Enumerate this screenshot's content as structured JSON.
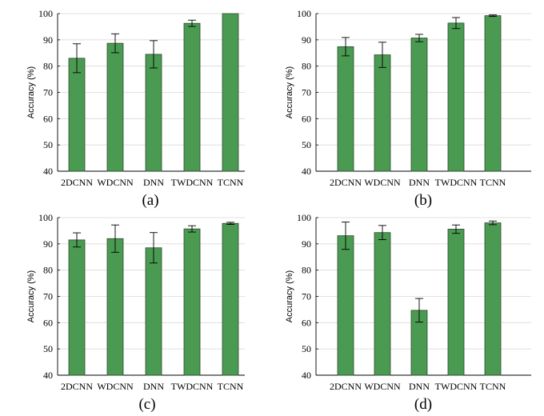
{
  "colors": {
    "bar": "#4a9a52",
    "bar_edge": "#2c4a2e",
    "axis": "#000000",
    "grid": "#d9d9d9",
    "error": "#000000"
  },
  "chart_data": [
    {
      "type": "bar",
      "caption": "(a)",
      "ylabel": "Accuracy (%)",
      "ylim": [
        40,
        100
      ],
      "yticks": [
        "40",
        "50",
        "60",
        "70",
        "80",
        "90",
        "100"
      ],
      "grid": true,
      "categories": [
        "2DCNN",
        "WDCNN",
        "DNN",
        "TWDCNN",
        "TCNN"
      ],
      "values": [
        83.0,
        88.7,
        84.5,
        96.3,
        100.0
      ],
      "errors": [
        5.5,
        3.6,
        5.2,
        1.2,
        0.0
      ]
    },
    {
      "type": "bar",
      "caption": "(b)",
      "ylabel": "Accuracy (%)",
      "ylim": [
        40,
        100
      ],
      "yticks": [
        "40",
        "50",
        "60",
        "70",
        "80",
        "90",
        "100"
      ],
      "grid": true,
      "categories": [
        "2DCNN",
        "WDCNN",
        "DNN",
        "TWDCNN",
        "TCNN"
      ],
      "values": [
        87.4,
        84.3,
        90.7,
        96.4,
        99.2
      ],
      "errors": [
        3.5,
        4.8,
        1.4,
        2.1,
        0.3
      ]
    },
    {
      "type": "bar",
      "caption": "(c)",
      "ylabel": "Accuracy (%)",
      "ylim": [
        40,
        100
      ],
      "yticks": [
        "40",
        "50",
        "60",
        "70",
        "80",
        "90",
        "100"
      ],
      "grid": true,
      "categories": [
        "2DCNN",
        "WDCNN",
        "DNN",
        "TWDCNN",
        "TCNN"
      ],
      "values": [
        91.5,
        92.0,
        88.5,
        95.7,
        97.8
      ],
      "errors": [
        2.7,
        5.2,
        5.8,
        1.2,
        0.4
      ]
    },
    {
      "type": "bar",
      "caption": "(d)",
      "ylabel": "Accuracy (%)",
      "ylim": [
        40,
        100
      ],
      "yticks": [
        "40",
        "50",
        "60",
        "70",
        "80",
        "90",
        "100"
      ],
      "grid": true,
      "categories": [
        "2DCNN",
        "WDCNN",
        "DNN",
        "TWDCNN",
        "TCNN"
      ],
      "values": [
        93.1,
        94.3,
        64.7,
        95.6,
        98.0
      ],
      "errors": [
        5.2,
        2.7,
        4.5,
        1.6,
        0.7
      ]
    }
  ]
}
